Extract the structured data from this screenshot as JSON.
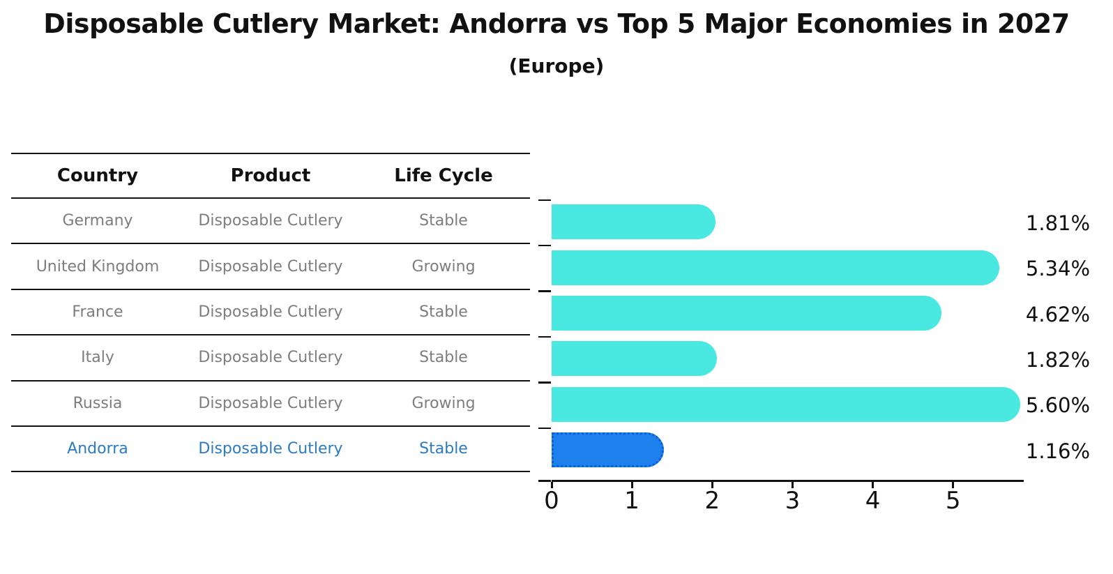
{
  "title": "Disposable Cutlery Market: Andorra vs Top 5 Major Economies in 2027",
  "subtitle": "(Europe)",
  "table": {
    "headers": [
      "Country",
      "Product",
      "Life Cycle"
    ],
    "rows": [
      {
        "country": "Germany",
        "product": "Disposable Cutlery",
        "life_cycle": "Stable",
        "highlight": false
      },
      {
        "country": "United Kingdom",
        "product": "Disposable Cutlery",
        "life_cycle": "Growing",
        "highlight": false
      },
      {
        "country": "France",
        "product": "Disposable Cutlery",
        "life_cycle": "Stable",
        "highlight": false
      },
      {
        "country": "Italy",
        "product": "Disposable Cutlery",
        "life_cycle": "Stable",
        "highlight": false
      },
      {
        "country": "Russia",
        "product": "Disposable Cutlery",
        "life_cycle": "Growing",
        "highlight": false
      },
      {
        "country": "Andorra",
        "product": "Disposable Cutlery",
        "life_cycle": "Stable",
        "highlight": true
      }
    ]
  },
  "chart_data": {
    "type": "bar",
    "orientation": "horizontal",
    "categories": [
      "Germany",
      "United Kingdom",
      "France",
      "Italy",
      "Russia",
      "Andorra"
    ],
    "values": [
      1.81,
      5.34,
      4.62,
      1.82,
      5.6,
      1.16
    ],
    "value_labels": [
      "1.81%",
      "5.34%",
      "4.62%",
      "1.82%",
      "5.60%",
      "1.16%"
    ],
    "highlight_index": 5,
    "highlight_category": "Andorra",
    "xlim": [
      0,
      5.88
    ],
    "x_ticks": [
      "0",
      "1",
      "2",
      "3",
      "4",
      "5"
    ],
    "grid": false,
    "legend": false,
    "xlabel": "",
    "ylabel": "",
    "bar_color": "#49E9E2",
    "highlight_bar_color": "#1E80EC",
    "highlight_border_color": "#0B5FD6"
  },
  "colors": {
    "background": "#FFFFFF",
    "title_text": "#111111",
    "table_line": "#111111",
    "row_text": "#7D7D7D",
    "highlight_text": "#2B7BC0",
    "axis": "#111111"
  }
}
